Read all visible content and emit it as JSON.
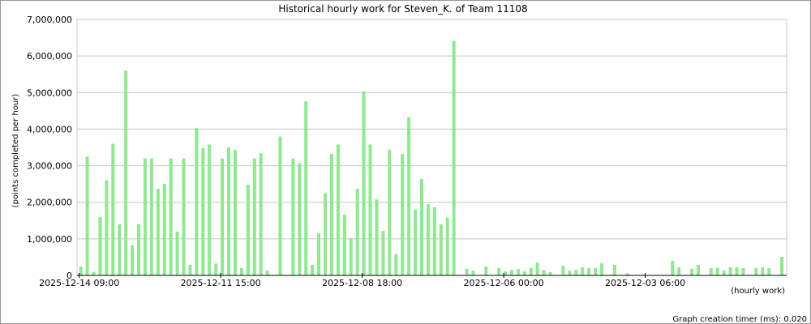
{
  "chart_data": {
    "type": "bar",
    "title": "Historical hourly work for Steven_K. of Team 11108",
    "y_label": "(points completed per hour)",
    "x_label": "(hourly work)",
    "footer": "Graph creation timer (ms): 0.020",
    "color": "#90e890",
    "grid": true,
    "xlim": [
      -1,
      330
    ],
    "xticks": [
      {
        "value": 0,
        "label": "2025-12-14 09:00"
      },
      {
        "value": 66,
        "label": "2025-12-11 15:00"
      },
      {
        "value": 132,
        "label": "2025-12-08 18:00"
      },
      {
        "value": 198,
        "label": "2025-12-06 00:00"
      },
      {
        "value": 264,
        "label": "2025-12-03 06:00"
      }
    ],
    "ylim": [
      0,
      7000000
    ],
    "yticks": [
      0,
      {
        "value": 1000000,
        "label": "1,000,000"
      },
      {
        "value": 2000000,
        "label": "2,000,000"
      },
      {
        "value": 3000000,
        "label": "3,000,000"
      },
      {
        "value": 4000000,
        "label": "4,000,000"
      },
      {
        "value": 5000000,
        "label": "5,000,000"
      },
      {
        "value": 6000000,
        "label": "6,000,000"
      },
      {
        "value": 7000000,
        "label": "7,000,000"
      }
    ],
    "x": [
      0,
      3,
      6,
      9,
      12,
      15,
      18,
      21,
      24,
      27,
      30,
      33,
      36,
      39,
      42,
      45,
      48,
      51,
      54,
      57,
      60,
      63,
      66,
      69,
      72,
      75,
      78,
      81,
      84,
      87,
      93,
      99,
      102,
      105,
      108,
      111,
      114,
      117,
      120,
      123,
      126,
      129,
      132,
      135,
      138,
      141,
      144,
      147,
      150,
      153,
      156,
      159,
      162,
      165,
      168,
      171,
      174,
      180,
      183,
      189,
      195,
      198,
      201,
      204,
      207,
      210,
      213,
      216,
      219,
      225,
      228,
      231,
      234,
      237,
      240,
      243,
      249,
      255,
      276,
      279,
      285,
      288,
      294,
      297,
      300,
      303,
      306,
      309,
      315,
      318,
      321,
      327
    ],
    "values": [
      240000,
      3250000,
      100000,
      1600000,
      2600000,
      3600000,
      1400000,
      5600000,
      820000,
      1400000,
      3200000,
      3200000,
      2370000,
      2500000,
      3200000,
      1200000,
      3200000,
      290000,
      4030000,
      3480000,
      3580000,
      320000,
      3200000,
      3500000,
      3430000,
      200000,
      2480000,
      3200000,
      3340000,
      130000,
      3800000,
      3200000,
      3070000,
      4760000,
      290000,
      1150000,
      2250000,
      3320000,
      3580000,
      1660000,
      1020000,
      2370000,
      5030000,
      3580000,
      2080000,
      1220000,
      3440000,
      580000,
      3320000,
      4320000,
      1800000,
      2640000,
      1950000,
      1860000,
      1400000,
      1580000,
      6420000,
      180000,
      130000,
      240000,
      200000,
      110000,
      150000,
      170000,
      110000,
      200000,
      350000,
      150000,
      90000,
      260000,
      130000,
      150000,
      220000,
      200000,
      200000,
      330000,
      290000,
      60000,
      400000,
      220000,
      180000,
      290000,
      200000,
      210000,
      130000,
      220000,
      220000,
      200000,
      200000,
      220000,
      200000,
      510000
    ]
  }
}
